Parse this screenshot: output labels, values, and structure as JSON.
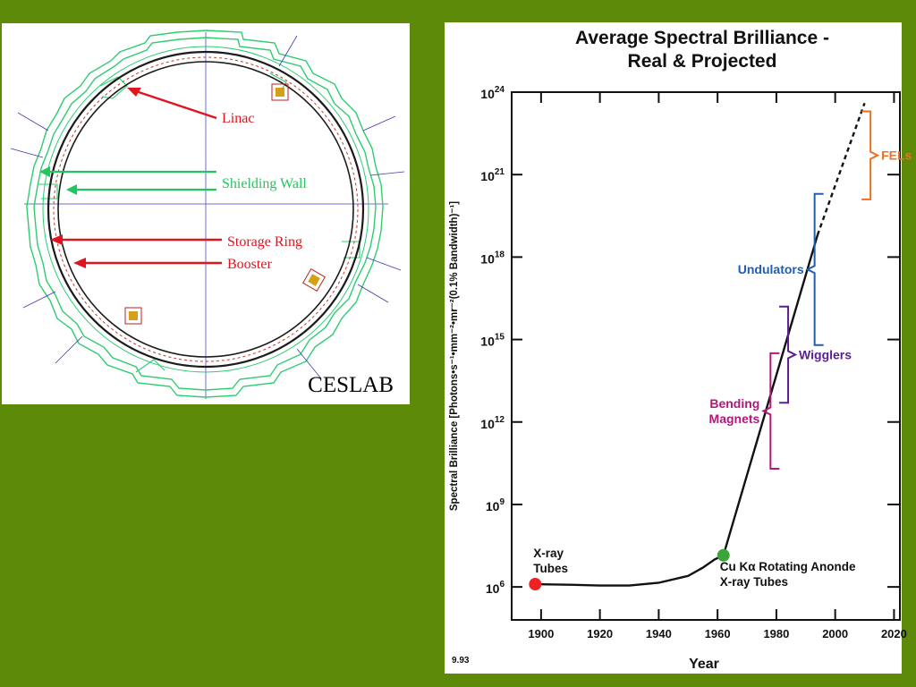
{
  "left_figure": {
    "labels": {
      "linac": "Linac",
      "shielding_wall": "Shielding Wall",
      "storage_ring": "Storage Ring",
      "booster": "Booster",
      "ceslab": "CESLAB"
    },
    "colors": {
      "red_arrow": "#e0141e",
      "green_arrow": "#22c55e",
      "wall": "#2ecc71",
      "ring": "#1b1b1b",
      "axis": "#6f6fcf"
    }
  },
  "chart_data": {
    "type": "line",
    "title": "Average Spectral Brilliance -",
    "subtitle": "Real & Projected",
    "xlabel": "Year",
    "ylabel": "Spectral Brilliance [Photons•s⁻¹•mm⁻²•mr⁻²(0.1% Bandwidth)⁻¹]",
    "footnote": "9.93",
    "xlim": [
      1890,
      2022
    ],
    "ylim_log10": [
      4.8,
      24
    ],
    "y_scale": "log",
    "x_ticks": [
      1900,
      1920,
      1940,
      1960,
      1980,
      2000,
      2020
    ],
    "y_ticks": [
      {
        "exp": 6,
        "base": "10",
        "sup": "6"
      },
      {
        "exp": 9,
        "base": "10",
        "sup": "9"
      },
      {
        "exp": 12,
        "base": "10",
        "sup": "12"
      },
      {
        "exp": 15,
        "base": "10",
        "sup": "15"
      },
      {
        "exp": 18,
        "base": "10",
        "sup": "18"
      },
      {
        "exp": 21,
        "base": "10",
        "sup": "21"
      },
      {
        "exp": 24,
        "base": "10",
        "sup": "24"
      }
    ],
    "series": [
      {
        "points": [
          [
            1898,
            6.1
          ],
          [
            1910,
            6.08
          ],
          [
            1920,
            6.05
          ],
          [
            1930,
            6.05
          ],
          [
            1940,
            6.15
          ],
          [
            1950,
            6.4
          ],
          [
            1955,
            6.7
          ],
          [
            1959,
            7.0
          ],
          [
            1962,
            7.15
          ]
        ],
        "style": "solid"
      },
      {
        "points": [
          [
            1962,
            7.15
          ],
          [
            1994,
            18.8
          ]
        ],
        "style": "solid"
      },
      {
        "points": [
          [
            1994,
            18.8
          ],
          [
            2010,
            23.6
          ]
        ],
        "style": "dashed"
      }
    ],
    "markers": [
      {
        "x": 1898,
        "y": 6.1,
        "color": "#ee2222",
        "label_lines": [
          "X-ray",
          "Tubes"
        ]
      },
      {
        "x": 1962,
        "y": 7.15,
        "color": "#3aa63a",
        "label_lines": [
          "Cu Kα Rotating Anonde",
          "X-ray Tubes"
        ]
      }
    ],
    "annotations": [
      {
        "label_lines": [
          "FELs"
        ],
        "color": "#f07020",
        "x": 2012,
        "y_range": [
          20.1,
          23.3
        ],
        "label_side": "right"
      },
      {
        "label_lines": [
          "Undulators"
        ],
        "color": "#1f5fb3",
        "x": 1993,
        "y_range": [
          14.8,
          20.3
        ],
        "label_side": "left"
      },
      {
        "label_lines": [
          "Wigglers"
        ],
        "color": "#5a1f8f",
        "x": 1984,
        "y_range": [
          12.7,
          16.2
        ],
        "label_side": "right"
      },
      {
        "label_lines": [
          "Bending",
          "Magnets"
        ],
        "color": "#b0187a",
        "x": 1978,
        "y_range": [
          10.3,
          14.5
        ],
        "label_side": "left"
      }
    ]
  }
}
